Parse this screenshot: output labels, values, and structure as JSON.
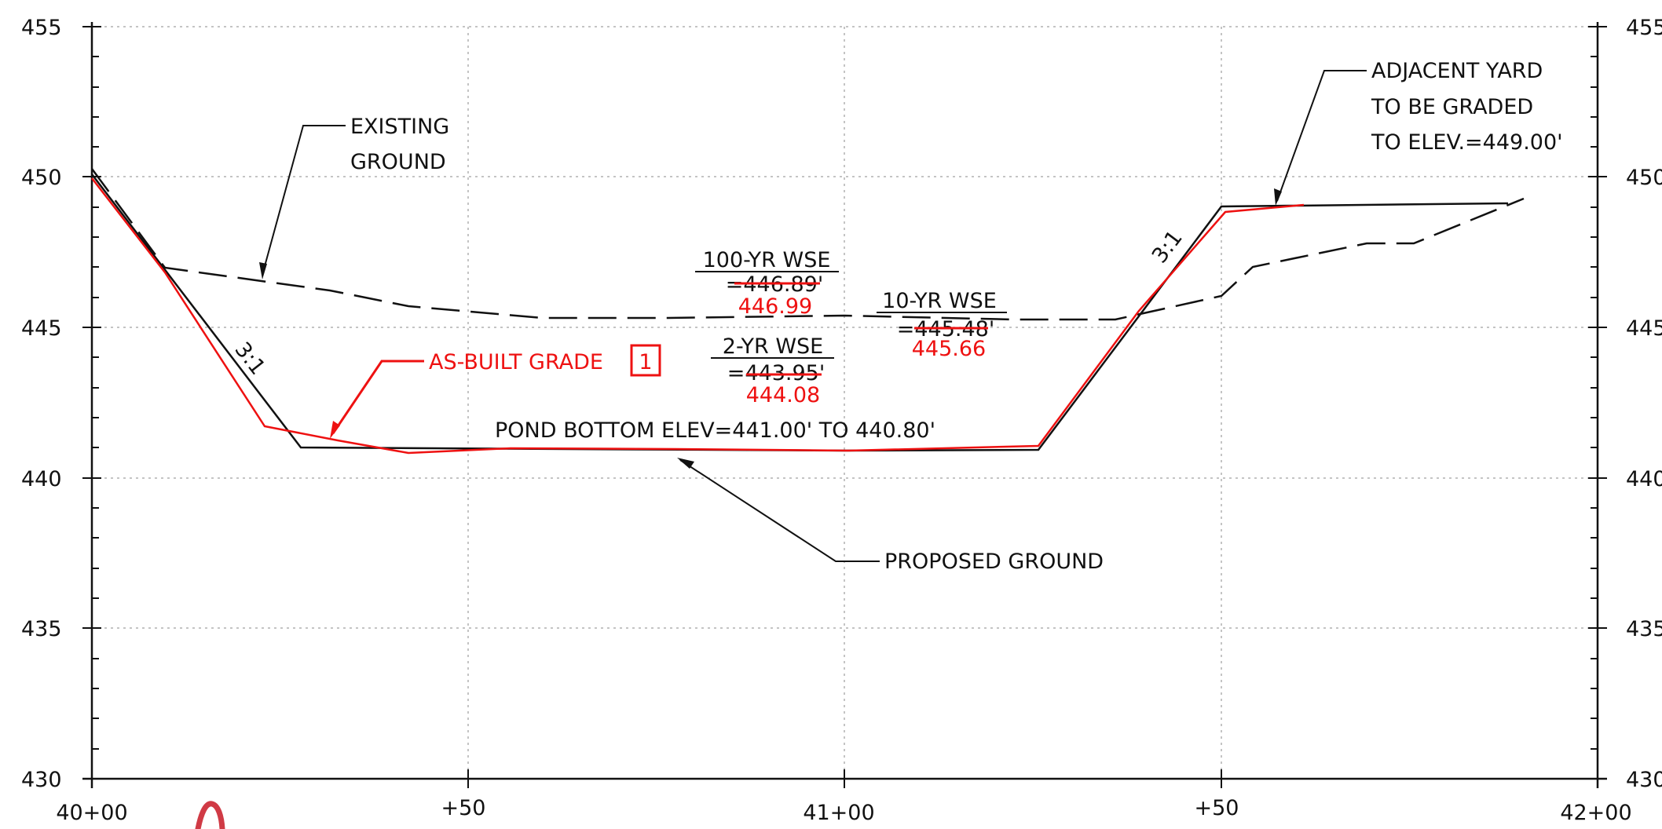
{
  "drawing": {
    "y_ticks": [
      "455",
      "450",
      "445",
      "440",
      "435",
      "430"
    ],
    "x_ticks": [
      "40+00",
      "+50",
      "41+00",
      "+50",
      "42+00"
    ],
    "notes": {
      "existing_ground": [
        "EXISTING",
        "GROUND"
      ],
      "adjacent_yard": [
        "ADJACENT  YARD",
        "TO  BE  GRADED",
        "TO  ELEV.=449.00'"
      ],
      "as_built_grade": "AS-BUILT GRADE",
      "as_built_tag": "1",
      "pond_bottom": "POND  BOTTOM  ELEV=441.00'  TO  440.80'",
      "proposed_ground": "PROPOSED  GROUND",
      "slope_left": "3:1",
      "slope_right": "3:1"
    },
    "water_levels": [
      {
        "label": "100-YR  WSE",
        "design": "=446.89'",
        "as_built": "446.99"
      },
      {
        "label": "10-YR  WSE",
        "design": "=445.48'",
        "as_built": "445.66"
      },
      {
        "label": "2-YR  WSE",
        "design": "=443.95'",
        "as_built": "444.08"
      }
    ],
    "colors": {
      "line": "#111111",
      "as_built": "#ee1111",
      "grid": "#b0b0b0"
    }
  }
}
